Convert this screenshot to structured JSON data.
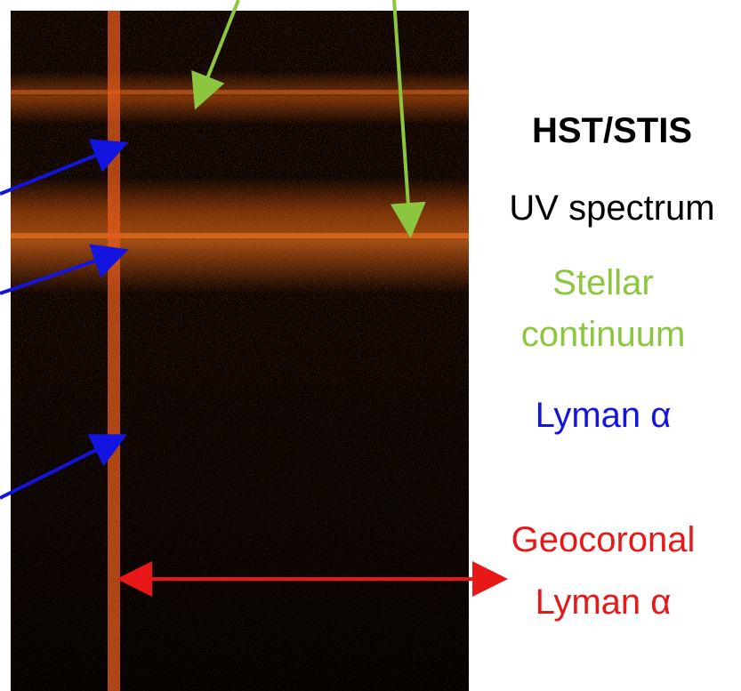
{
  "labels": {
    "instrument": "HST/STIS",
    "spectrum": "UV spectrum",
    "stellar_continuum": [
      "Stellar",
      "continuum"
    ],
    "lyman_alpha": "Lyman α",
    "geocoronal": [
      "Geocoronal",
      "Lyman α"
    ]
  }
}
